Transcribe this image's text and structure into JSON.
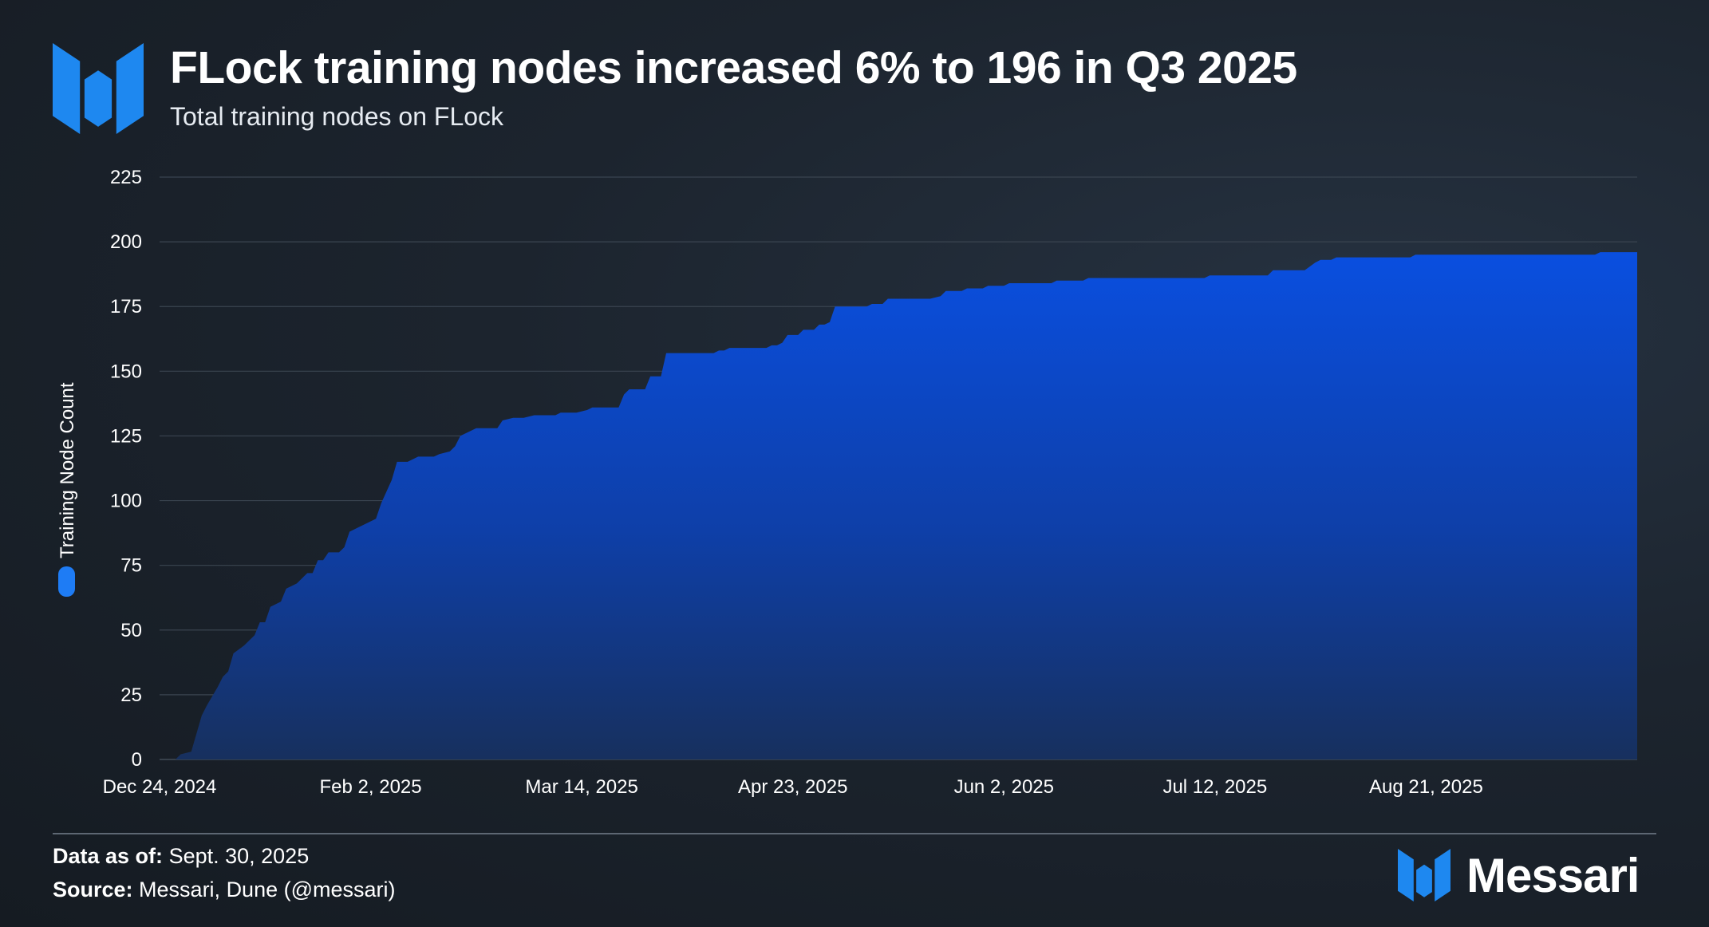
{
  "header": {
    "title": "FLock training nodes increased 6% to 196 in Q3 2025",
    "subtitle": "Total training nodes on FLock"
  },
  "footer": {
    "data_as_of_label": "Data as of:",
    "data_as_of_value": "Sept. 30, 2025",
    "source_label": "Source:",
    "source_value": "Messari, Dune (@messari)"
  },
  "brand": {
    "name": "Messari",
    "icon": "messari-logo-icon"
  },
  "colors": {
    "area": "#0a4bd6",
    "legend": "#1e7cf5",
    "logo": "#1e88f0",
    "grid": "#3a4450"
  },
  "chart_data": {
    "type": "area",
    "title": "FLock training nodes increased 6% to 196 in Q3 2025",
    "subtitle": "Total training nodes on FLock",
    "xlabel": "",
    "ylabel": "Training Node Count",
    "legend": {
      "entries": [
        "Training Node Count"
      ],
      "placement": "left-vertical"
    },
    "grid": true,
    "ylim": [
      0,
      225
    ],
    "yticks": [
      0,
      25,
      50,
      75,
      100,
      125,
      150,
      175,
      200,
      225
    ],
    "xlim": [
      "2024-12-24",
      "2025-09-30"
    ],
    "xticks": [
      {
        "date": "2024-12-24",
        "label": "Dec 24, 2024"
      },
      {
        "date": "2025-02-02",
        "label": "Feb 2, 2025"
      },
      {
        "date": "2025-03-14",
        "label": "Mar 14, 2025"
      },
      {
        "date": "2025-04-23",
        "label": "Apr 23, 2025"
      },
      {
        "date": "2025-06-02",
        "label": "Jun 2, 2025"
      },
      {
        "date": "2025-07-12",
        "label": "Jul 12, 2025"
      },
      {
        "date": "2025-08-21",
        "label": "Aug 21, 2025"
      }
    ],
    "series": [
      {
        "name": "Training Node Count",
        "points": [
          [
            "2024-12-24",
            0
          ],
          [
            "2024-12-27",
            0
          ],
          [
            "2024-12-28",
            2
          ],
          [
            "2024-12-30",
            3
          ],
          [
            "2025-01-01",
            17
          ],
          [
            "2025-01-02",
            21
          ],
          [
            "2025-01-04",
            28
          ],
          [
            "2025-01-05",
            32
          ],
          [
            "2025-01-06",
            34
          ],
          [
            "2025-01-07",
            41
          ],
          [
            "2025-01-09",
            44
          ],
          [
            "2025-01-11",
            48
          ],
          [
            "2025-01-12",
            53
          ],
          [
            "2025-01-13",
            53
          ],
          [
            "2025-01-14",
            59
          ],
          [
            "2025-01-16",
            61
          ],
          [
            "2025-01-17",
            66
          ],
          [
            "2025-01-19",
            68
          ],
          [
            "2025-01-20",
            70
          ],
          [
            "2025-01-21",
            72
          ],
          [
            "2025-01-22",
            72
          ],
          [
            "2025-01-23",
            77
          ],
          [
            "2025-01-24",
            77
          ],
          [
            "2025-01-25",
            80
          ],
          [
            "2025-01-27",
            80
          ],
          [
            "2025-01-28",
            82
          ],
          [
            "2025-01-29",
            88
          ],
          [
            "2025-01-31",
            90
          ],
          [
            "2025-02-02",
            92
          ],
          [
            "2025-02-03",
            93
          ],
          [
            "2025-02-04",
            99
          ],
          [
            "2025-02-06",
            108
          ],
          [
            "2025-02-07",
            115
          ],
          [
            "2025-02-09",
            115
          ],
          [
            "2025-02-11",
            117
          ],
          [
            "2025-02-14",
            117
          ],
          [
            "2025-02-15",
            118
          ],
          [
            "2025-02-17",
            119
          ],
          [
            "2025-02-18",
            121
          ],
          [
            "2025-02-19",
            125
          ],
          [
            "2025-02-21",
            127
          ],
          [
            "2025-02-22",
            128
          ],
          [
            "2025-02-26",
            128
          ],
          [
            "2025-02-27",
            131
          ],
          [
            "2025-03-01",
            132
          ],
          [
            "2025-03-03",
            132
          ],
          [
            "2025-03-05",
            133
          ],
          [
            "2025-03-09",
            133
          ],
          [
            "2025-03-10",
            134
          ],
          [
            "2025-03-13",
            134
          ],
          [
            "2025-03-15",
            135
          ],
          [
            "2025-03-16",
            136
          ],
          [
            "2025-03-21",
            136
          ],
          [
            "2025-03-22",
            141
          ],
          [
            "2025-03-23",
            143
          ],
          [
            "2025-03-26",
            143
          ],
          [
            "2025-03-27",
            148
          ],
          [
            "2025-03-29",
            148
          ],
          [
            "2025-03-30",
            157
          ],
          [
            "2025-04-08",
            157
          ],
          [
            "2025-04-09",
            158
          ],
          [
            "2025-04-10",
            158
          ],
          [
            "2025-04-11",
            159
          ],
          [
            "2025-04-18",
            159
          ],
          [
            "2025-04-19",
            160
          ],
          [
            "2025-04-20",
            160
          ],
          [
            "2025-04-21",
            161
          ],
          [
            "2025-04-22",
            164
          ],
          [
            "2025-04-24",
            164
          ],
          [
            "2025-04-25",
            166
          ],
          [
            "2025-04-27",
            166
          ],
          [
            "2025-04-28",
            168
          ],
          [
            "2025-04-29",
            168
          ],
          [
            "2025-04-30",
            169
          ],
          [
            "2025-05-01",
            175
          ],
          [
            "2025-05-07",
            175
          ],
          [
            "2025-05-08",
            176
          ],
          [
            "2025-05-10",
            176
          ],
          [
            "2025-05-11",
            178
          ],
          [
            "2025-05-19",
            178
          ],
          [
            "2025-05-21",
            179
          ],
          [
            "2025-05-22",
            181
          ],
          [
            "2025-05-25",
            181
          ],
          [
            "2025-05-26",
            182
          ],
          [
            "2025-05-29",
            182
          ],
          [
            "2025-05-30",
            183
          ],
          [
            "2025-06-02",
            183
          ],
          [
            "2025-06-03",
            184
          ],
          [
            "2025-06-11",
            184
          ],
          [
            "2025-06-12",
            185
          ],
          [
            "2025-06-17",
            185
          ],
          [
            "2025-06-18",
            186
          ],
          [
            "2025-07-10",
            186
          ],
          [
            "2025-07-11",
            187
          ],
          [
            "2025-07-22",
            187
          ],
          [
            "2025-07-23",
            189
          ],
          [
            "2025-07-29",
            189
          ],
          [
            "2025-07-31",
            192
          ],
          [
            "2025-08-01",
            193
          ],
          [
            "2025-08-03",
            193
          ],
          [
            "2025-08-04",
            194
          ],
          [
            "2025-08-18",
            194
          ],
          [
            "2025-08-19",
            195
          ],
          [
            "2025-09-22",
            195
          ],
          [
            "2025-09-23",
            196
          ],
          [
            "2025-09-30",
            196
          ]
        ]
      }
    ]
  }
}
